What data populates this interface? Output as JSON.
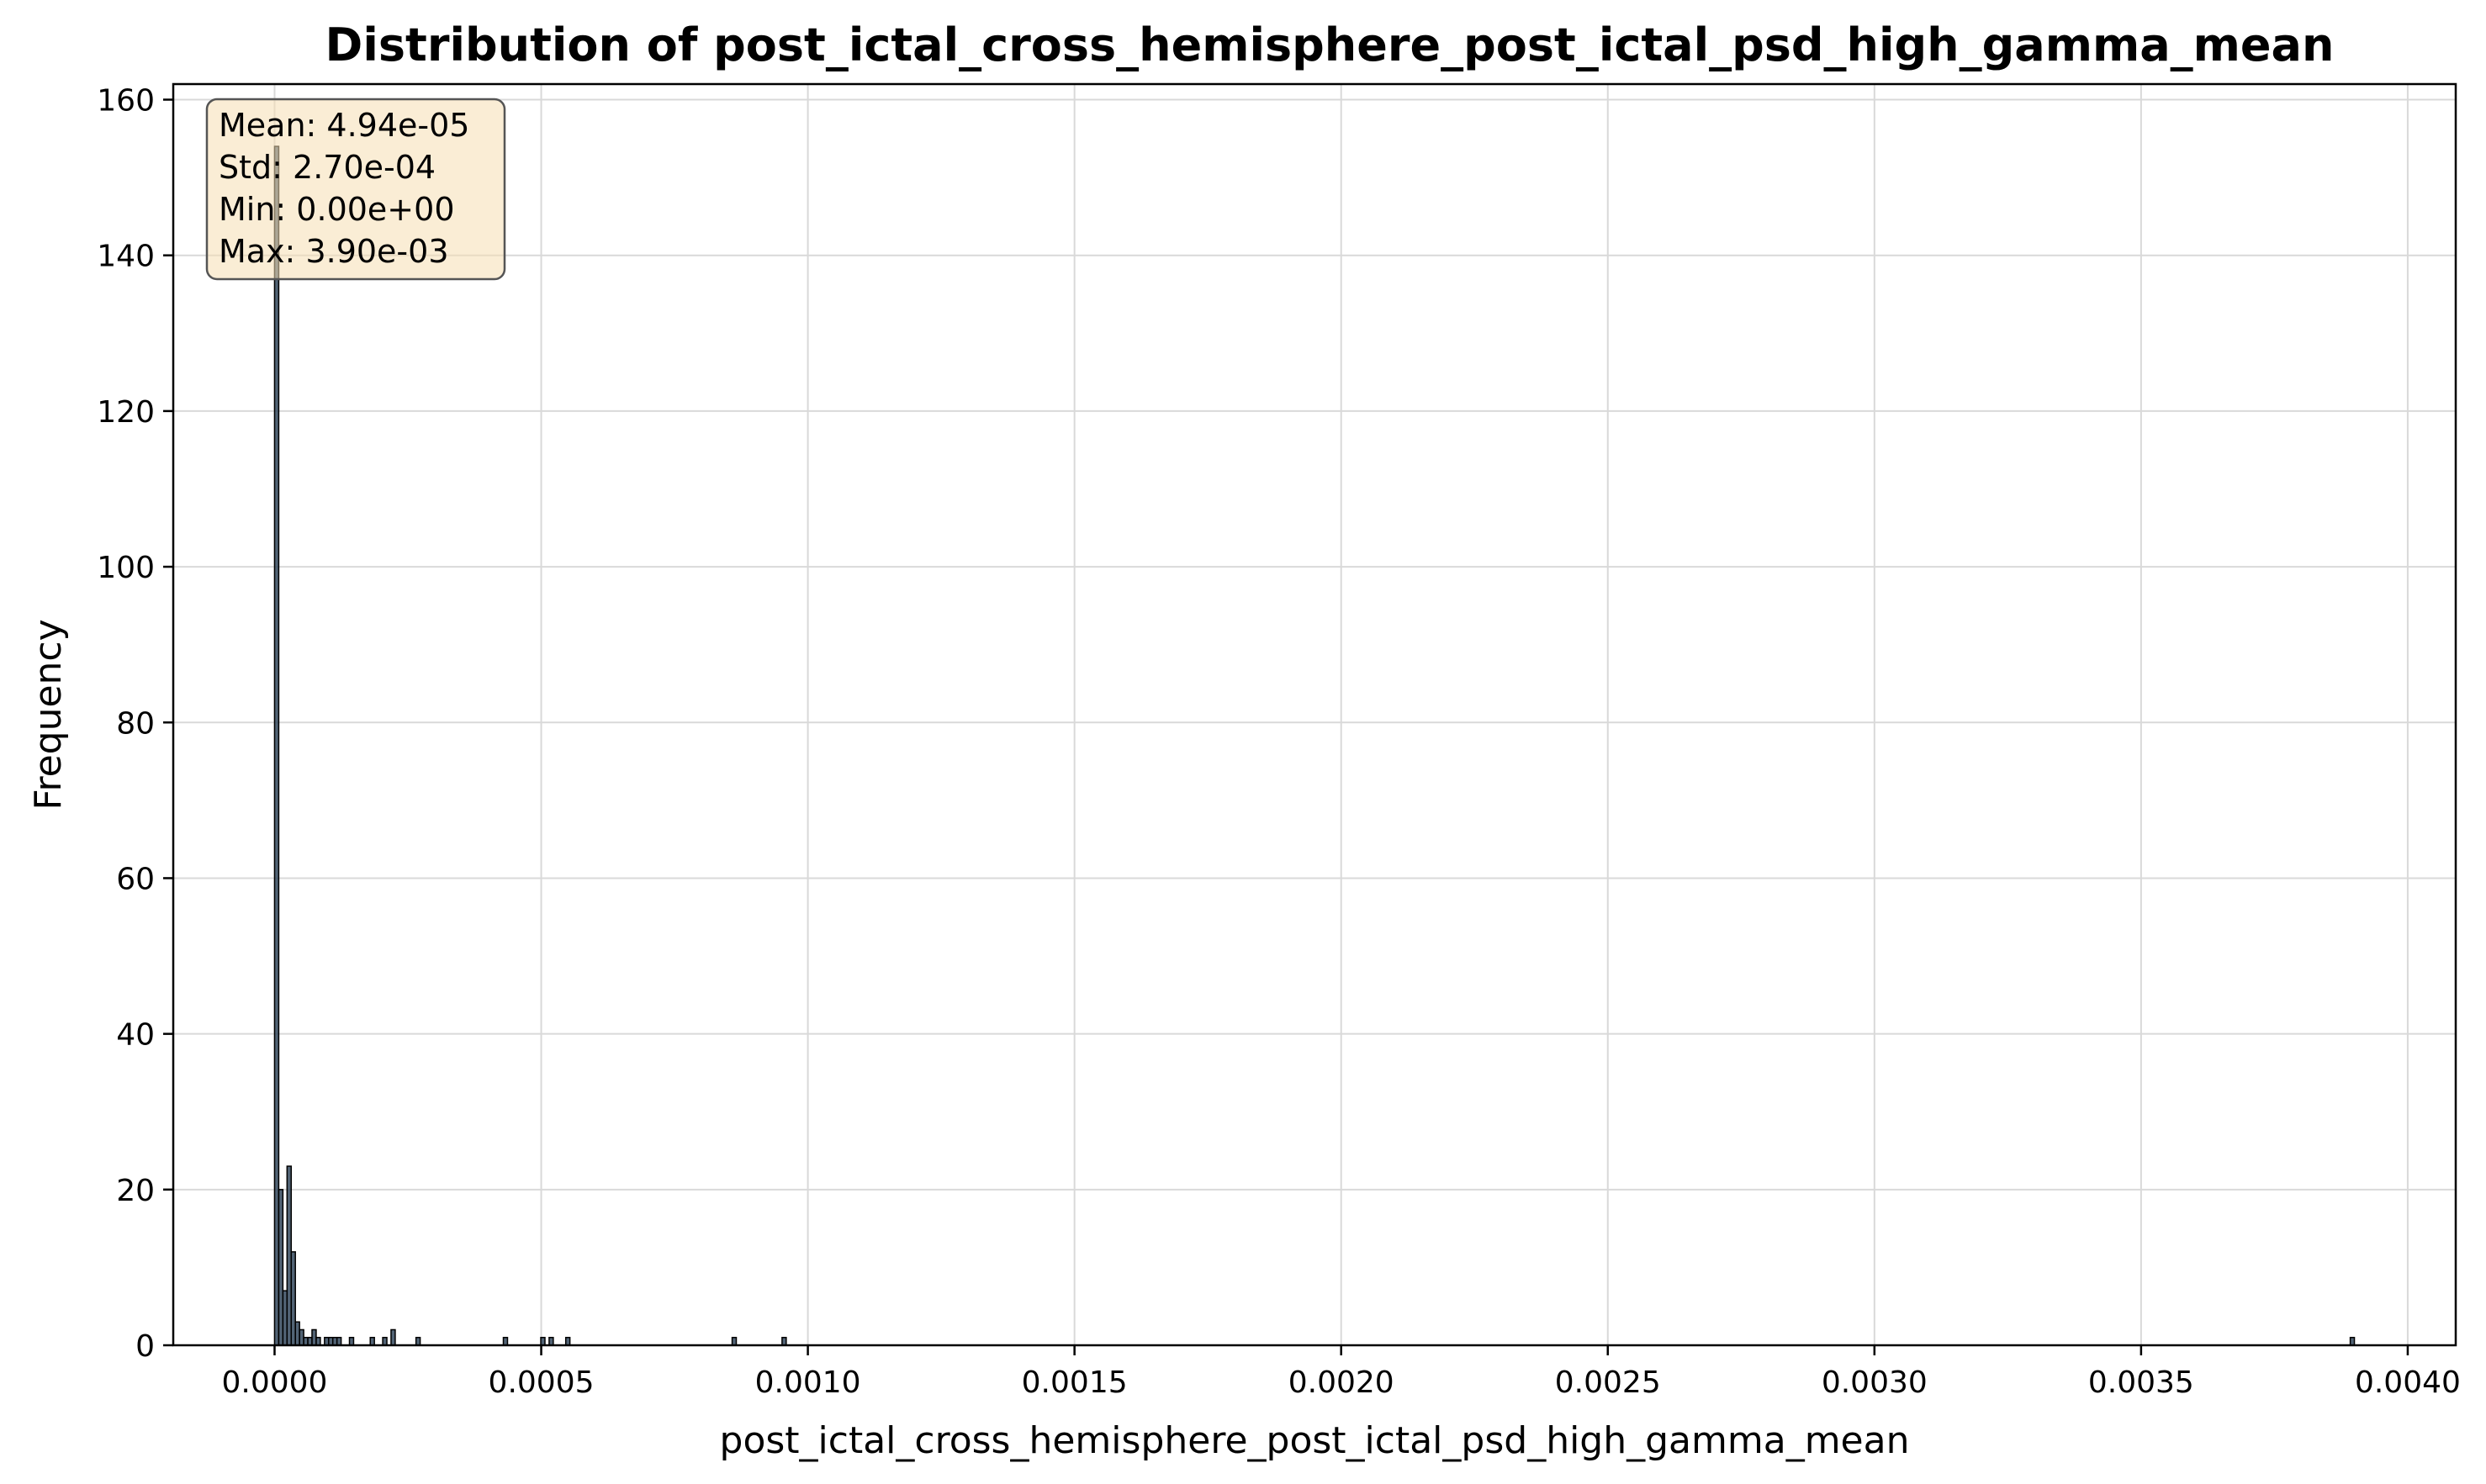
{
  "chart_data": {
    "type": "bar",
    "title": "Distribution of post_ictal_cross_hemisphere_post_ictal_psd_high_gamma_mean",
    "xlabel": "post_ictal_cross_hemisphere_post_ictal_psd_high_gamma_mean",
    "ylabel": "Frequency",
    "xlim": [
      -0.00019,
      0.00409
    ],
    "ylim": [
      0,
      162
    ],
    "x_ticks": [
      0.0,
      0.0005,
      0.001,
      0.0015,
      0.002,
      0.0025,
      0.003,
      0.0035,
      0.004
    ],
    "x_tick_labels": [
      "0.0000",
      "0.0005",
      "0.0010",
      "0.0015",
      "0.0020",
      "0.0025",
      "0.0030",
      "0.0035",
      "0.0040"
    ],
    "y_ticks": [
      0,
      20,
      40,
      60,
      80,
      100,
      120,
      140,
      160
    ],
    "y_tick_labels": [
      "0",
      "20",
      "40",
      "60",
      "80",
      "100",
      "120",
      "140",
      "160"
    ],
    "grid": true,
    "bar_color": "#34495e",
    "bar_edge_color": "#000000",
    "bin_width": 7.8e-06,
    "bins": [
      {
        "x": 0.0,
        "count": 154
      },
      {
        "x": 7.8e-06,
        "count": 20
      },
      {
        "x": 1.56e-05,
        "count": 7
      },
      {
        "x": 2.34e-05,
        "count": 23
      },
      {
        "x": 3.12e-05,
        "count": 12
      },
      {
        "x": 3.9e-05,
        "count": 3
      },
      {
        "x": 4.68e-05,
        "count": 2
      },
      {
        "x": 5.46e-05,
        "count": 1
      },
      {
        "x": 6.24e-05,
        "count": 1
      },
      {
        "x": 7.02e-05,
        "count": 2
      },
      {
        "x": 7.8e-05,
        "count": 1
      },
      {
        "x": 9.36e-05,
        "count": 1
      },
      {
        "x": 0.0001014,
        "count": 1
      },
      {
        "x": 0.0001092,
        "count": 1
      },
      {
        "x": 0.000117,
        "count": 1
      },
      {
        "x": 0.0001404,
        "count": 1
      },
      {
        "x": 0.0001794,
        "count": 1
      },
      {
        "x": 0.0002028,
        "count": 1
      },
      {
        "x": 0.0002184,
        "count": 2
      },
      {
        "x": 0.0002652,
        "count": 1
      },
      {
        "x": 0.000429,
        "count": 1
      },
      {
        "x": 0.0004992,
        "count": 1
      },
      {
        "x": 0.0005148,
        "count": 1
      },
      {
        "x": 0.000546,
        "count": 1
      },
      {
        "x": 0.000858,
        "count": 1
      },
      {
        "x": 0.0009516,
        "count": 1
      },
      {
        "x": 0.0038922,
        "count": 1
      }
    ],
    "stats_box": {
      "lines": [
        "Mean: 4.94e-05",
        "Std: 2.70e-04",
        "Min: 0.00e+00",
        "Max: 3.90e-03"
      ],
      "background": "#f5deb3",
      "border": "#555555"
    }
  }
}
